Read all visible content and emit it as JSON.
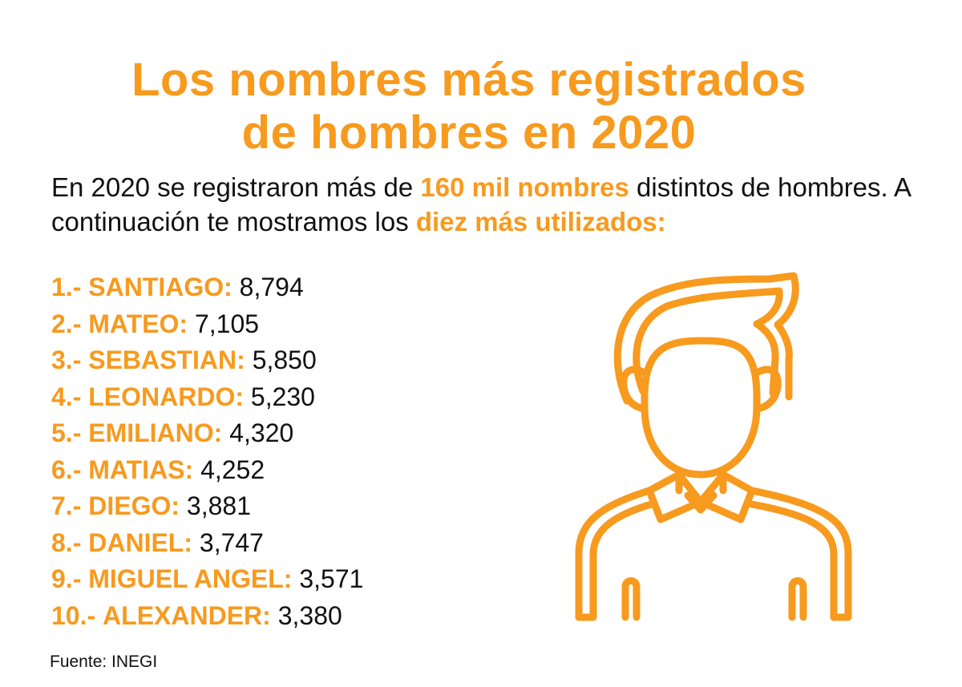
{
  "title": {
    "line1": "Los nombres más registrados",
    "line2": "de hombres en 2020"
  },
  "intro": {
    "part1": "En 2020 se registraron más de ",
    "highlight1": "160 mil nombres",
    "part2": " distintos de hombres. A continuación te mostramos los ",
    "highlight2": "diez más utilizados:"
  },
  "names": [
    {
      "rank": "1.-",
      "name": "SANTIAGO:",
      "count": "8,794"
    },
    {
      "rank": "2.-",
      "name": "MATEO:",
      "count": "7,105"
    },
    {
      "rank": "3.-",
      "name": "SEBASTIAN:",
      "count": "5,850"
    },
    {
      "rank": "4.-",
      "name": "LEONARDO:",
      "count": "5,230"
    },
    {
      "rank": "5.-",
      "name": "EMILIANO:",
      "count": "4,320"
    },
    {
      "rank": "6.-",
      "name": "MATIAS:",
      "count": "4,252"
    },
    {
      "rank": "7.-",
      "name": "DIEGO:",
      "count": "3,881"
    },
    {
      "rank": "8.-",
      "name": "DANIEL:",
      "count": "3,747"
    },
    {
      "rank": "9.-",
      "name": "MIGUEL ANGEL:",
      "count": "3,571"
    },
    {
      "rank": "10.-",
      "name": "ALEXANDER:",
      "count": "3,380"
    }
  ],
  "source": "Fuente: INEGI",
  "illustration": {
    "icon": "man-avatar-icon"
  },
  "colors": {
    "accent": "#f79a1e",
    "text": "#111111",
    "background": "#ffffff"
  }
}
